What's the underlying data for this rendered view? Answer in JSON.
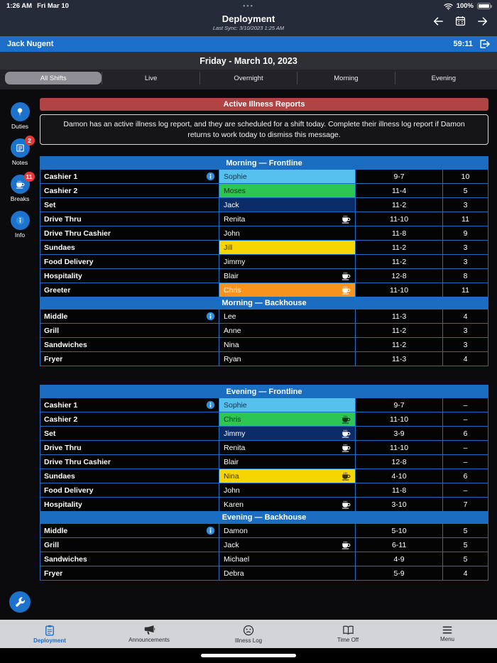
{
  "status_bar": {
    "time": "1:26 AM",
    "date": "Fri Mar 10",
    "dots": "•••",
    "battery": "100%"
  },
  "header": {
    "title": "Deployment",
    "last_sync": "Last Sync: 3/10/2023 1:25 AM",
    "icons": [
      "arrow-left",
      "calendar",
      "arrow-right"
    ]
  },
  "user_bar": {
    "name": "Jack Nugent",
    "timer": "59:11",
    "icon": "logout"
  },
  "date_bar": {
    "label": "Friday - March 10, 2023"
  },
  "tabs": [
    {
      "label": "All Shifts",
      "active": true
    },
    {
      "label": "Live",
      "active": false
    },
    {
      "label": "Overnight",
      "active": false
    },
    {
      "label": "Morning",
      "active": false
    },
    {
      "label": "Evening",
      "active": false
    }
  ],
  "sidebar": [
    {
      "label": "Duties",
      "icon": "pin"
    },
    {
      "label": "Notes",
      "icon": "note",
      "badge": "2"
    },
    {
      "label": "Breaks",
      "icon": "coffee",
      "badge": "11"
    },
    {
      "label": "Info",
      "icon": "info"
    }
  ],
  "alert": {
    "title": "Active Illness Reports",
    "message": "Damon has an active illness log report, and they are scheduled for a shift today. Complete their illness log report if Damon returns to work today to dismiss this message."
  },
  "groups": [
    {
      "sections": [
        {
          "title": "Morning — Frontline",
          "rows": [
            {
              "role": "Cashier 1",
              "info": true,
              "name": "Sophie",
              "highlight": "lightblue",
              "time": "9-7",
              "count": "10"
            },
            {
              "role": "Cashier 2",
              "name": "Moses",
              "highlight": "green",
              "time": "11-4",
              "count": "5"
            },
            {
              "role": "Set",
              "name": "Jack",
              "highlight": "navy",
              "time": "11-2",
              "count": "3"
            },
            {
              "role": "Drive Thru",
              "name": "Renita",
              "break": true,
              "time": "11-10",
              "count": "11"
            },
            {
              "role": "Drive Thru Cashier",
              "name": "John",
              "time": "11-8",
              "count": "9"
            },
            {
              "role": "Sundaes",
              "name": "Jill",
              "highlight": "yellow",
              "time": "11-2",
              "count": "3"
            },
            {
              "role": "Food Delivery",
              "name": "Jimmy",
              "time": "11-2",
              "count": "3"
            },
            {
              "role": "Hospitality",
              "name": "Blair",
              "break": true,
              "time": "12-8",
              "count": "8"
            },
            {
              "role": "Greeter",
              "name": "Chris",
              "highlight": "orange",
              "break": true,
              "time": "11-10",
              "count": "11"
            }
          ]
        },
        {
          "title": "Morning — Backhouse",
          "rows": [
            {
              "role": "Middle",
              "info": true,
              "name": "Lee",
              "time": "11-3",
              "count": "4"
            },
            {
              "role": "Grill",
              "name": "Anne",
              "time": "11-2",
              "count": "3"
            },
            {
              "role": "Sandwiches",
              "name": "Nina",
              "time": "11-2",
              "count": "3"
            },
            {
              "role": "Fryer",
              "name": "Ryan",
              "time": "11-3",
              "count": "4"
            }
          ]
        }
      ]
    },
    {
      "sections": [
        {
          "title": "Evening — Frontline",
          "rows": [
            {
              "role": "Cashier 1",
              "info": true,
              "name": "Sophie",
              "highlight": "lightblue",
              "time": "9-7",
              "count": "–"
            },
            {
              "role": "Cashier 2",
              "name": "Chris",
              "highlight": "green",
              "break": true,
              "time": "11-10",
              "count": "–"
            },
            {
              "role": "Set",
              "name": "Jimmy",
              "highlight": "navy",
              "break": true,
              "time": "3-9",
              "count": "6"
            },
            {
              "role": "Drive Thru",
              "name": "Renita",
              "break": true,
              "time": "11-10",
              "count": "–"
            },
            {
              "role": "Drive Thru Cashier",
              "name": "Blair",
              "time": "12-8",
              "count": "–"
            },
            {
              "role": "Sundaes",
              "name": "Nina",
              "highlight": "yellow",
              "break": true,
              "time": "4-10",
              "count": "6"
            },
            {
              "role": "Food Delivery",
              "name": "John",
              "time": "11-8",
              "count": "–"
            },
            {
              "role": "Hospitality",
              "name": "Karen",
              "break": true,
              "time": "3-10",
              "count": "7"
            }
          ]
        },
        {
          "title": "Evening — Backhouse",
          "rows": [
            {
              "role": "Middle",
              "info": true,
              "name": "Damon",
              "time": "5-10",
              "count": "5"
            },
            {
              "role": "Grill",
              "name": "Jack",
              "break": true,
              "time": "6-11",
              "count": "5"
            },
            {
              "role": "Sandwiches",
              "name": "Michael",
              "time": "4-9",
              "count": "5"
            },
            {
              "role": "Fryer",
              "name": "Debra",
              "time": "5-9",
              "count": "4"
            }
          ]
        }
      ]
    }
  ],
  "fab": {
    "icon": "wrench"
  },
  "bottom_nav": [
    {
      "label": "Deployment",
      "icon": "clipboard",
      "active": true
    },
    {
      "label": "Announcements",
      "icon": "megaphone",
      "active": false
    },
    {
      "label": "Illness Log",
      "icon": "face",
      "active": false
    },
    {
      "label": "Time Off",
      "icon": "book",
      "active": false
    },
    {
      "label": "Menu",
      "icon": "menu",
      "active": false
    }
  ],
  "colors": {
    "accent_blue": "#1b6fc9",
    "table_border": "#1a6dc0",
    "section_header": "#1a6dc0",
    "alert_red": "#b04444",
    "badge_red": "#e23b3b",
    "highlights": {
      "lightblue": {
        "bg": "#57c1ee",
        "fg": "#0a3553"
      },
      "green": {
        "bg": "#2dc653",
        "fg": "#0b3317"
      },
      "navy": {
        "bg": "#0a2d69",
        "fg": "#ffffff"
      },
      "yellow": {
        "bg": "#f6d500",
        "fg": "#383000"
      },
      "orange": {
        "bg": "#f8941d",
        "fg": "#ffffff"
      }
    }
  }
}
